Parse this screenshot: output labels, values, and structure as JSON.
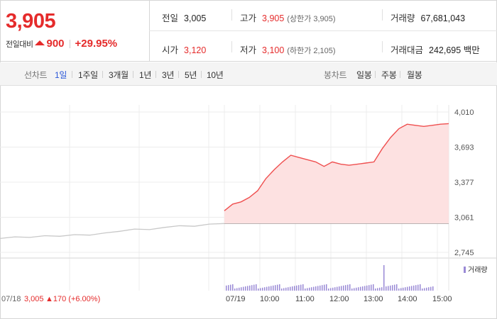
{
  "summary": {
    "price": "3,905",
    "change_label": "전일대비",
    "change_amount": "900",
    "change_pct": "+29.95%",
    "prev_close": {
      "label": "전일",
      "value": "3,005"
    },
    "high": {
      "label": "고가",
      "value": "3,905",
      "sub": "(상한가 3,905)"
    },
    "volume": {
      "label": "거래량",
      "value": "67,681,043"
    },
    "open": {
      "label": "시가",
      "value": "3,120"
    },
    "low": {
      "label": "저가",
      "value": "3,100",
      "sub": "(하한가 2,105)"
    },
    "turnover": {
      "label": "거래대금",
      "value": "242,695",
      "unit": "백만"
    }
  },
  "tabs": {
    "line_label": "선차트",
    "line": [
      "1일",
      "1주일",
      "3개월",
      "1년",
      "3년",
      "5년",
      "10년"
    ],
    "active": "1일",
    "candle_label": "봉차트",
    "candle": [
      "일봉",
      "주봉",
      "월봉"
    ]
  },
  "chart_data": {
    "type": "line",
    "y_ticks": [
      "4,010",
      "3,693",
      "3,377",
      "3,061",
      "2,745"
    ],
    "ylim": [
      2745,
      4010
    ],
    "prev_close_line": 3005,
    "x_labels": [
      "07/19",
      "10:00",
      "11:00",
      "12:00",
      "13:00",
      "14:00",
      "15:00"
    ],
    "prev_day": {
      "label": "07/18",
      "close": "3,005",
      "change": "▲170 (+6.00%)"
    },
    "volume_legend": "거래량",
    "series": [
      {
        "values_prev_day": [
          2870,
          2885,
          2880,
          2895,
          2890,
          2905,
          2900,
          2920,
          2935,
          2955,
          2950,
          2970,
          2985,
          2980,
          3000,
          3005
        ],
        "values_today": [
          3120,
          3180,
          3200,
          3240,
          3300,
          3410,
          3490,
          3560,
          3620,
          3600,
          3580,
          3560,
          3520,
          3560,
          3540,
          3530,
          3540,
          3550,
          3560,
          3680,
          3780,
          3860,
          3900,
          3890,
          3880,
          3890,
          3900,
          3905
        ]
      }
    ],
    "grid": true
  }
}
